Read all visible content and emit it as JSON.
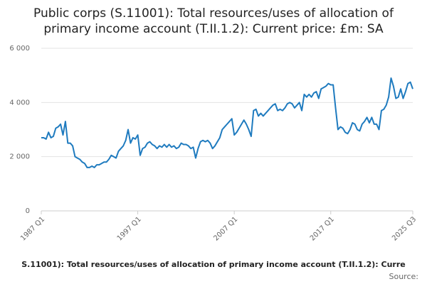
{
  "chart_data": {
    "type": "line",
    "title": "Public corps (S.11001): Total resources/uses of allocation of",
    "subtitle": "primary income account (T.II.1.2): Current price: £m: SA",
    "footer": "S.11001): Total resources/uses of allocation of primary income account (T.II.1.2): Curre",
    "source": "Source:",
    "color": "#1f7bbf",
    "grid": true,
    "ylim": [
      0,
      6000
    ],
    "yticks": [
      {
        "value": 0,
        "label": "0"
      },
      {
        "value": 2000,
        "label": "2 000"
      },
      {
        "value": 4000,
        "label": "4 000"
      },
      {
        "value": 6000,
        "label": "6 000"
      }
    ],
    "categories": [
      "1987 Q1",
      null,
      null,
      null,
      null,
      null,
      null,
      null,
      null,
      null,
      null,
      null,
      null,
      null,
      null,
      null,
      null,
      null,
      null,
      null,
      null,
      null,
      null,
      null,
      null,
      null,
      null,
      null,
      null,
      null,
      null,
      null,
      null,
      null,
      null,
      null,
      null,
      null,
      null,
      null,
      "1997 Q1",
      null,
      null,
      null,
      null,
      null,
      null,
      null,
      null,
      null,
      null,
      null,
      null,
      null,
      null,
      null,
      null,
      null,
      null,
      null,
      null,
      null,
      null,
      null,
      null,
      null,
      null,
      null,
      null,
      null,
      null,
      null,
      null,
      null,
      null,
      null,
      null,
      null,
      null,
      null,
      "2007 Q1",
      null,
      null,
      null,
      null,
      null,
      null,
      null,
      null,
      null,
      null,
      null,
      null,
      null,
      null,
      null,
      null,
      null,
      null,
      null,
      null,
      null,
      null,
      null,
      null,
      null,
      null,
      null,
      null,
      null,
      null,
      null,
      null,
      null,
      null,
      null,
      null,
      null,
      null,
      null,
      "2017 Q1",
      null,
      null,
      null,
      null,
      null,
      null,
      null,
      null,
      null,
      null,
      null,
      null,
      null,
      null,
      null,
      null,
      null,
      null,
      null,
      null,
      null,
      null,
      null,
      null,
      null,
      null,
      null,
      null,
      null,
      null,
      null,
      null,
      null,
      "2025 Q3"
    ],
    "values": [
      2700,
      2700,
      2650,
      2900,
      2700,
      2750,
      3050,
      3100,
      3200,
      2800,
      3300,
      2500,
      2500,
      2400,
      2000,
      1950,
      1900,
      1800,
      1750,
      1600,
      1600,
      1650,
      1600,
      1700,
      1700,
      1750,
      1800,
      1800,
      1900,
      2050,
      2000,
      1950,
      2200,
      2300,
      2400,
      2600,
      3000,
      2500,
      2700,
      2650,
      2800,
      2050,
      2300,
      2350,
      2500,
      2550,
      2450,
      2400,
      2300,
      2400,
      2350,
      2450,
      2350,
      2450,
      2350,
      2400,
      2300,
      2350,
      2500,
      2450,
      2450,
      2400,
      2300,
      2350,
      1950,
      2300,
      2550,
      2600,
      2550,
      2600,
      2500,
      2300,
      2400,
      2550,
      2700,
      3000,
      3100,
      3200,
      3300,
      3400,
      2800,
      2900,
      3050,
      3200,
      3350,
      3200,
      3000,
      2750,
      3700,
      3750,
      3500,
      3600,
      3500,
      3600,
      3700,
      3800,
      3900,
      3950,
      3700,
      3750,
      3700,
      3800,
      3950,
      4000,
      3950,
      3800,
      3900,
      4000,
      3700,
      4300,
      4200,
      4300,
      4200,
      4350,
      4400,
      4150,
      4500,
      4550,
      4600,
      4700,
      4650,
      4650,
      3800,
      3000,
      3100,
      3050,
      2900,
      2850,
      3000,
      3250,
      3200,
      3000,
      2950,
      3200,
      3300,
      3450,
      3250,
      3450,
      3200,
      3200,
      3000,
      3700,
      3750,
      3900,
      4200,
      4900,
      4600,
      4150,
      4200,
      4500,
      4150,
      4400,
      4700,
      4750,
      4500
    ]
  }
}
